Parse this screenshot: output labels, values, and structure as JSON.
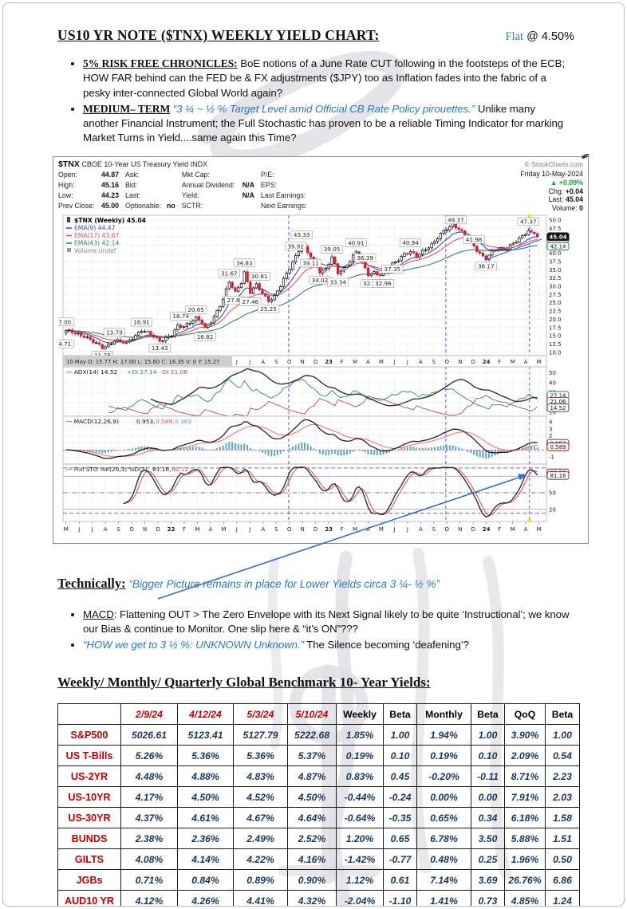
{
  "page": {
    "title": "US10 YR NOTE ($TNX) WEEKLY YIELD CHART:",
    "status_word": "Flat",
    "status_rest": "@ 4.50%",
    "bullets1": [
      {
        "lead": "5% RISK FREE CHRONICLES:",
        "text": " BoE notions of a June Rate CUT following in the footsteps of the ECB; HOW FAR behind can the FED be & FX adjustments ($JPY) too as Inflation fades into the fabric of a pesky inter-connected Global World again?"
      },
      {
        "lead": "MEDIUM– TERM",
        "quote": " “3 ¼ ~ ½ % Target Level amid Official CB Rate Policy pirouettes.”",
        "text": " Unlike many another Financial Instrument; the Full Stochastic has proven to be a reliable Timing Indicator for marking Market Turns in Yield....same again this Time?"
      }
    ],
    "technically": {
      "label": "Technically:",
      "quote": "“Bigger Picture remains in place for Lower Yields circa 3 ¼- ½ %”"
    },
    "bullets2": [
      {
        "lead": "MACD",
        "text": ": Flattening OUT > The Zero Envelope with its Next Signal likely to be quite ‘Instructional’; we know our Bias & continue to Monitor. One slip here & “it’s ON”???"
      },
      {
        "quote": "“HOW we get to 3 ½ %: UNKNOWN Unknown.”",
        "text": "  The Silence becoming ‘deafening’?"
      }
    ],
    "table_heading": "Weekly/ Monthly/ Quarterly Global Benchmark 10- Year Yields:"
  },
  "table": {
    "headers": [
      "",
      "2/9/24",
      "4/12/24",
      "5/3/24",
      "5/10/24",
      "Weekly",
      "Beta",
      "Monthly",
      "Beta",
      "QoQ",
      "Beta"
    ],
    "rows": [
      {
        "label": "S&P500",
        "values": [
          "5026.61",
          "5123.41",
          "5127.79",
          "5222.68",
          "1.85%",
          "1.00",
          "1.94%",
          "1.00",
          "3.90%",
          "1.00"
        ]
      },
      {
        "label": "US T-Bills",
        "values": [
          "5.26%",
          "5.36%",
          "5.36%",
          "5.37%",
          "0.19%",
          "0.10",
          "0.19%",
          "0.10",
          "2.09%",
          "0.54"
        ]
      },
      {
        "label": "US-2YR",
        "values": [
          "4.48%",
          "4.88%",
          "4.83%",
          "4.87%",
          "0.83%",
          "0.45",
          "-0.20%",
          "-0.11",
          "8.71%",
          "2.23"
        ]
      },
      {
        "label": "US-10YR",
        "values": [
          "4.17%",
          "4.50%",
          "4.52%",
          "4.50%",
          "-0.44%",
          "-0.24",
          "0.00%",
          "0.00",
          "7.91%",
          "2.03"
        ]
      },
      {
        "label": "US-30YR",
        "values": [
          "4.37%",
          "4.61%",
          "4.67%",
          "4.64%",
          "-0.64%",
          "-0.35",
          "0.65%",
          "0.34",
          "6.18%",
          "1.58"
        ]
      },
      {
        "label": "BUNDS",
        "values": [
          "2.38%",
          "2.36%",
          "2.49%",
          "2.52%",
          "1.20%",
          "0.65",
          "6.78%",
          "3.50",
          "5.88%",
          "1.51"
        ]
      },
      {
        "label": "GILTS",
        "values": [
          "4.08%",
          "4.14%",
          "4.22%",
          "4.16%",
          "-1.42%",
          "-0.77",
          "0.48%",
          "0.25",
          "1.96%",
          "0.50"
        ]
      },
      {
        "label": "JGBs",
        "values": [
          "0.71%",
          "0.84%",
          "0.89%",
          "0.90%",
          "1.12%",
          "0.61",
          "7.14%",
          "3.69",
          "26.76%",
          "6.86"
        ]
      },
      {
        "label": "AUD10 YR",
        "values": [
          "4.12%",
          "4.26%",
          "4.41%",
          "4.32%",
          "-2.04%",
          "-1.10",
          "1.41%",
          "0.73",
          "4.85%",
          "1.24"
        ]
      }
    ]
  },
  "chart_data": {
    "type": "candlestick",
    "header": {
      "symbol": "$TNX",
      "desc": "CBOE 10-Year US Treasury Yield INDX",
      "credit": "© StockCharts.com"
    },
    "info": {
      "col1": [
        [
          "Open:",
          "44.87"
        ],
        [
          "High:",
          "45.16"
        ],
        [
          "Low:",
          "44.23"
        ],
        [
          "Prev Close:",
          "45.00"
        ]
      ],
      "col2": [
        [
          "Ask:",
          ""
        ],
        [
          "Bid:",
          ""
        ],
        [
          "Last:",
          ""
        ],
        [
          "Optionable:",
          "no"
        ]
      ],
      "col3": [
        [
          "Mkt Cap:",
          ""
        ],
        [
          "Annual Dividend:",
          "N/A"
        ],
        [
          "Yield:",
          "N/A"
        ],
        [
          "SCTR:",
          ""
        ]
      ],
      "col4": [
        [
          "P/E:",
          ""
        ],
        [
          "EPS:",
          ""
        ],
        [
          "Last Earnings:",
          ""
        ],
        [
          "Next Earnings:",
          ""
        ]
      ],
      "right": {
        "date": "Friday 10-May-2024",
        "pct": "▲ +0.09%",
        "rows": [
          [
            "Chg:",
            "+0.04"
          ],
          [
            "Last:",
            "45.04"
          ],
          [
            "Volume:",
            "0"
          ]
        ]
      }
    },
    "legend": [
      "$TNX (Weekly) 45.04",
      "EMA(9) 44.47",
      "EMA(17) 43.67",
      "EMA(43) 42.14",
      "Volume undef"
    ],
    "price": {
      "ylim": [
        9,
        51.5
      ],
      "ytick_step": 2.5,
      "ytick_min": 10,
      "ytick_max": 50,
      "first_open": 15.77,
      "last": 45.04,
      "anchors": [
        [
          0,
          16.3
        ],
        [
          2,
          16.1
        ],
        [
          4,
          15.6
        ],
        [
          6,
          15.0
        ],
        [
          9,
          13.0
        ],
        [
          12,
          11.6
        ],
        [
          14,
          12.3
        ],
        [
          16,
          13.5
        ],
        [
          18,
          13.0
        ],
        [
          20,
          12.8
        ],
        [
          22,
          14.6
        ],
        [
          25,
          16.6
        ],
        [
          27,
          15.7
        ],
        [
          29,
          14.8
        ],
        [
          31,
          13.7
        ],
        [
          33,
          14.3
        ],
        [
          35,
          15.1
        ],
        [
          37,
          17.8
        ],
        [
          39,
          18.0
        ],
        [
          41,
          19.2
        ],
        [
          43,
          20.3
        ],
        [
          45,
          18.8
        ],
        [
          46,
          17.2
        ],
        [
          48,
          19.5
        ],
        [
          50,
          22.5
        ],
        [
          52,
          26.0
        ],
        [
          54,
          31.2
        ],
        [
          56,
          28.2
        ],
        [
          58,
          31.5
        ],
        [
          59,
          34.3
        ],
        [
          61,
          28.0
        ],
        [
          63,
          30.3
        ],
        [
          65,
          28.0
        ],
        [
          67,
          25.8
        ],
        [
          69,
          26.8
        ],
        [
          71,
          30.0
        ],
        [
          73,
          33.8
        ],
        [
          75,
          37.5
        ],
        [
          77,
          41.0
        ],
        [
          78,
          42.9
        ],
        [
          80,
          40.0
        ],
        [
          82,
          37.8
        ],
        [
          84,
          34.6
        ],
        [
          86,
          35.3
        ],
        [
          88,
          38.6
        ],
        [
          90,
          33.9
        ],
        [
          92,
          35.5
        ],
        [
          94,
          38.0
        ],
        [
          96,
          40.3
        ],
        [
          98,
          36.8
        ],
        [
          100,
          33.6
        ],
        [
          102,
          34.4
        ],
        [
          104,
          33.4
        ],
        [
          106,
          34.5
        ],
        [
          108,
          36.6
        ],
        [
          110,
          38.3
        ],
        [
          112,
          39.9
        ],
        [
          114,
          40.3
        ],
        [
          116,
          38.9
        ],
        [
          118,
          40.6
        ],
        [
          120,
          42.2
        ],
        [
          122,
          43.5
        ],
        [
          124,
          45.6
        ],
        [
          126,
          47.3
        ],
        [
          128,
          48.9
        ],
        [
          130,
          47.5
        ],
        [
          132,
          45.3
        ],
        [
          134,
          43.2
        ],
        [
          136,
          41.0
        ],
        [
          138,
          39.2
        ],
        [
          139,
          38.5
        ],
        [
          141,
          40.2
        ],
        [
          143,
          41.3
        ],
        [
          145,
          41.2
        ],
        [
          147,
          42.5
        ],
        [
          149,
          43.6
        ],
        [
          151,
          44.8
        ],
        [
          153,
          46.9
        ],
        [
          154,
          46.2
        ],
        [
          155,
          45.9
        ],
        [
          156,
          45.04
        ]
      ],
      "annotations": [
        [
          -0.4,
          17.0,
          "7.00",
          "a"
        ],
        [
          -0.4,
          14.71,
          "4.71",
          "b"
        ],
        [
          12,
          11.28,
          "11.28",
          "b"
        ],
        [
          16,
          13.79,
          "13.79",
          "a"
        ],
        [
          25,
          16.91,
          "16.91",
          "a"
        ],
        [
          31,
          13.43,
          "13.43",
          "b"
        ],
        [
          38,
          18.74,
          "18.74",
          "a"
        ],
        [
          43,
          20.65,
          "20.65",
          "a"
        ],
        [
          46,
          16.82,
          "16.82",
          "b"
        ],
        [
          54,
          31.67,
          "31.67",
          "a"
        ],
        [
          56,
          27.88,
          "27.88",
          "b"
        ],
        [
          59,
          34.83,
          "34.83",
          "a"
        ],
        [
          61,
          27.46,
          "27.46",
          "b"
        ],
        [
          64,
          30.81,
          "30.81",
          "a"
        ],
        [
          67,
          25.25,
          "25.25",
          "b"
        ],
        [
          76,
          39.92,
          "39.92",
          "a"
        ],
        [
          78,
          43.33,
          "43.33",
          "a"
        ],
        [
          81,
          39.11,
          "39.11",
          "b"
        ],
        [
          84,
          34.02,
          "34.02",
          "b"
        ],
        [
          88,
          39.05,
          "39.05",
          "a"
        ],
        [
          90,
          33.34,
          "33.34",
          "b"
        ],
        [
          96,
          40.91,
          "40.91",
          "a"
        ],
        [
          99,
          36.39,
          "36.39",
          "a"
        ],
        [
          101,
          32.95,
          "32.95",
          "b"
        ],
        [
          105,
          32.96,
          "32.96",
          "b"
        ],
        [
          108,
          37.35,
          "37.35",
          "b"
        ],
        [
          114,
          40.94,
          "40.94",
          "a"
        ],
        [
          129,
          49.37,
          "49.37",
          "a"
        ],
        [
          135,
          41.98,
          "41.98",
          "a"
        ],
        [
          139,
          38.17,
          "38.17",
          "b"
        ],
        [
          153,
          47.37,
          "47.37",
          "a"
        ]
      ],
      "boxes": [
        [
          "44.47",
          "red"
        ],
        [
          "42.14",
          "green"
        ],
        [
          "45.04",
          "blackfill"
        ]
      ],
      "box_vals": [
        44.47,
        42.14,
        45.04
      ],
      "trendline": [
        [
          138.5,
          37.9
        ],
        [
          157.5,
          44.3
        ]
      ],
      "vlines": [
        73.7,
        125.7,
        153.4
      ],
      "status": "10 May O: 15.77  H: 17.00  L: 15.60  C: 16.35  V: 0  Y: 15.27"
    },
    "months": [
      "M",
      "J",
      "J",
      "A",
      "S",
      "O",
      "N",
      "D",
      "22",
      "F",
      "M",
      "A",
      "M",
      "J",
      "J",
      "A",
      "S",
      "O",
      "N",
      "D",
      "23",
      "F",
      "M",
      "A",
      "M",
      "J",
      "J",
      "A",
      "S",
      "O",
      "N",
      "D",
      "24",
      "F",
      "M",
      "A",
      "M"
    ],
    "adx": {
      "label": "ADX(14) 14.52",
      "di_plus": "+DI 27.14",
      "di_minus": "-DI 21.06",
      "ylim": [
        6,
        56
      ],
      "yticks": [
        10,
        30,
        40,
        50
      ],
      "boxes": [
        [
          "27.14",
          "green",
          27.14
        ],
        [
          "21.06",
          "darkred",
          21.06
        ],
        [
          "14.52",
          "black",
          14.52
        ]
      ]
    },
    "macd": {
      "label": "MACD(12,26,9)",
      "vals": [
        "0.953,",
        "0.589,",
        "0.363"
      ],
      "ylim": [
        -2,
        4.8
      ],
      "yticks": [
        4,
        3,
        2,
        -1
      ],
      "boxes": [
        [
          "0.953",
          "black",
          0.953
        ],
        [
          "0.589",
          "red",
          0.45
        ]
      ]
    },
    "sto": {
      "label": "Full STO %K(20,3) %D(3)",
      "vals": [
        "81.16,",
        "86.12"
      ],
      "ylim": [
        -2,
        102
      ],
      "yticks": [
        50,
        20
      ],
      "hlines": [
        80,
        20
      ],
      "mid": 50,
      "dash_hlines": [
        95,
        13
      ],
      "boxes": [
        [
          "86.12",
          "red",
          86.12
        ],
        [
          "81.16",
          "black",
          81.16
        ]
      ]
    }
  }
}
